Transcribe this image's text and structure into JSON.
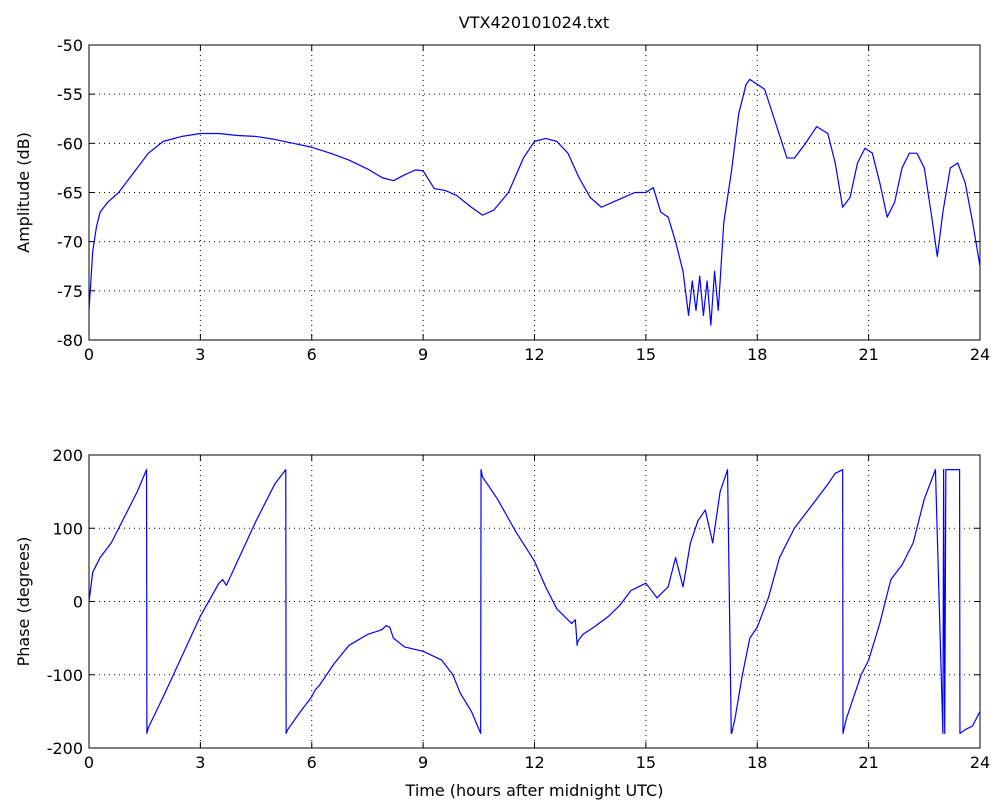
{
  "figure_title": "VTX420101024.txt",
  "colors": {
    "series": "#0000ff",
    "axes": "#000000",
    "background": "#ffffff"
  },
  "chart_data": [
    {
      "type": "line",
      "title": "VTX420101024.txt",
      "xlabel": "",
      "ylabel": "Amplitude (dB)",
      "xlim": [
        0,
        24
      ],
      "ylim": [
        -80,
        -50
      ],
      "xticks": [
        0,
        3,
        6,
        9,
        12,
        15,
        18,
        21,
        24
      ],
      "yticks": [
        -80,
        -75,
        -70,
        -65,
        -60,
        -55,
        -50
      ],
      "grid": true,
      "series": [
        {
          "x": [
            0,
            0.05,
            0.1,
            0.2,
            0.3,
            0.5,
            0.8,
            1.2,
            1.6,
            2.0,
            2.5,
            3.0,
            3.5,
            4.0,
            4.5,
            5.0,
            5.5,
            6.0,
            6.5,
            7.0,
            7.5,
            7.9,
            8.2,
            8.5,
            8.8,
            9.0,
            9.3,
            9.6,
            9.9,
            10.3,
            10.6,
            10.9,
            11.3,
            11.7,
            12.0,
            12.3,
            12.6,
            12.9,
            13.2,
            13.5,
            13.8,
            14.1,
            14.4,
            14.7,
            15.0,
            15.2,
            15.4,
            15.6,
            15.8,
            16.0,
            16.15,
            16.25,
            16.35,
            16.45,
            16.55,
            16.65,
            16.75,
            16.85,
            16.95,
            17.1,
            17.3,
            17.5,
            17.7,
            17.8,
            18.0,
            18.2,
            18.5,
            18.8,
            19.0,
            19.3,
            19.6,
            19.9,
            20.1,
            20.3,
            20.5,
            20.7,
            20.9,
            21.1,
            21.3,
            21.5,
            21.7,
            21.9,
            22.1,
            22.3,
            22.5,
            22.7,
            22.85,
            23.0,
            23.2,
            23.4,
            23.6,
            23.8,
            24.0
          ],
          "y": [
            -77,
            -74,
            -71,
            -68.5,
            -67,
            -66,
            -65,
            -63,
            -61,
            -59.8,
            -59.3,
            -59,
            -59,
            -59.2,
            -59.3,
            -59.6,
            -60,
            -60.4,
            -61,
            -61.7,
            -62.6,
            -63.5,
            -63.8,
            -63.2,
            -62.7,
            -62.8,
            -64.6,
            -64.8,
            -65.3,
            -66.5,
            -67.3,
            -66.8,
            -65,
            -61.5,
            -59.8,
            -59.5,
            -59.8,
            -61,
            -63.5,
            -65.5,
            -66.5,
            -66,
            -65.5,
            -65,
            -65,
            -64.5,
            -67,
            -67.5,
            -70,
            -73,
            -77.5,
            -74,
            -77,
            -73.5,
            -77.5,
            -74,
            -78.5,
            -73,
            -77,
            -68,
            -63,
            -57,
            -54,
            -53.5,
            -54,
            -54.5,
            -58,
            -61.5,
            -61.5,
            -60,
            -58.3,
            -59,
            -62,
            -66.5,
            -65.5,
            -62,
            -60.5,
            -61,
            -64,
            -67.5,
            -66,
            -62.5,
            -61,
            -61,
            -62.5,
            -67.5,
            -71.5,
            -67,
            -62.5,
            -62,
            -64,
            -68,
            -72.5
          ]
        }
      ]
    },
    {
      "type": "line",
      "title": "",
      "xlabel": "Time (hours after midnight UTC)",
      "ylabel": "Phase (degrees)",
      "xlim": [
        0,
        24
      ],
      "ylim": [
        -200,
        200
      ],
      "xticks": [
        0,
        3,
        6,
        9,
        12,
        15,
        18,
        21,
        24
      ],
      "yticks": [
        -200,
        -100,
        0,
        100,
        200
      ],
      "grid": true,
      "series": [
        {
          "x": [
            0,
            0.1,
            0.3,
            0.6,
            1.0,
            1.3,
            1.55,
            1.56,
            1.6,
            2.0,
            2.5,
            3.0,
            3.5,
            3.6,
            3.7,
            4.0,
            4.5,
            5.0,
            5.3,
            5.31,
            5.35,
            5.7,
            6.0,
            6.1,
            6.2,
            6.6,
            7.0,
            7.5,
            7.8,
            7.9,
            8.0,
            8.1,
            8.2,
            8.5,
            9.0,
            9.5,
            9.8,
            10.0,
            10.3,
            10.55,
            10.56,
            10.6,
            11.0,
            11.5,
            12.0,
            12.3,
            12.6,
            12.9,
            13.0,
            13.1,
            13.15,
            13.16,
            13.3,
            13.6,
            14.0,
            14.3,
            14.6,
            15.0,
            15.3,
            15.6,
            15.8,
            16.0,
            16.2,
            16.4,
            16.6,
            16.8,
            17.0,
            17.2,
            17.3,
            17.31,
            17.4,
            17.6,
            17.8,
            18.0,
            18.3,
            18.6,
            19.0,
            19.3,
            19.6,
            19.9,
            20.1,
            20.3,
            20.31,
            20.4,
            20.6,
            20.8,
            21.0,
            21.3,
            21.6,
            21.9,
            22.2,
            22.5,
            22.8,
            23.0,
            23.02,
            23.05,
            23.08,
            23.1,
            23.2,
            23.4,
            23.45,
            23.46,
            23.6,
            23.8,
            24.0
          ],
          "y": [
            0,
            40,
            60,
            80,
            120,
            150,
            180,
            -180,
            -172,
            -130,
            -75,
            -20,
            25,
            30,
            22,
            55,
            110,
            160,
            180,
            -180,
            -175,
            -150,
            -130,
            -120,
            -115,
            -85,
            -60,
            -45,
            -40,
            -38,
            -33,
            -35,
            -50,
            -62,
            -68,
            -80,
            -100,
            -125,
            -150,
            -180,
            180,
            170,
            140,
            95,
            55,
            20,
            -10,
            -25,
            -30,
            -25,
            -60,
            -55,
            -45,
            -35,
            -20,
            -5,
            15,
            25,
            5,
            20,
            60,
            20,
            80,
            110,
            125,
            80,
            150,
            180,
            -180,
            -180,
            -160,
            -100,
            -50,
            -35,
            5,
            60,
            100,
            120,
            140,
            160,
            175,
            180,
            -180,
            -160,
            -130,
            -100,
            -80,
            -30,
            30,
            50,
            80,
            140,
            180,
            -180,
            180,
            -180,
            180,
            180,
            180,
            180,
            180,
            -180,
            -175,
            -170,
            -150
          ]
        }
      ]
    }
  ]
}
